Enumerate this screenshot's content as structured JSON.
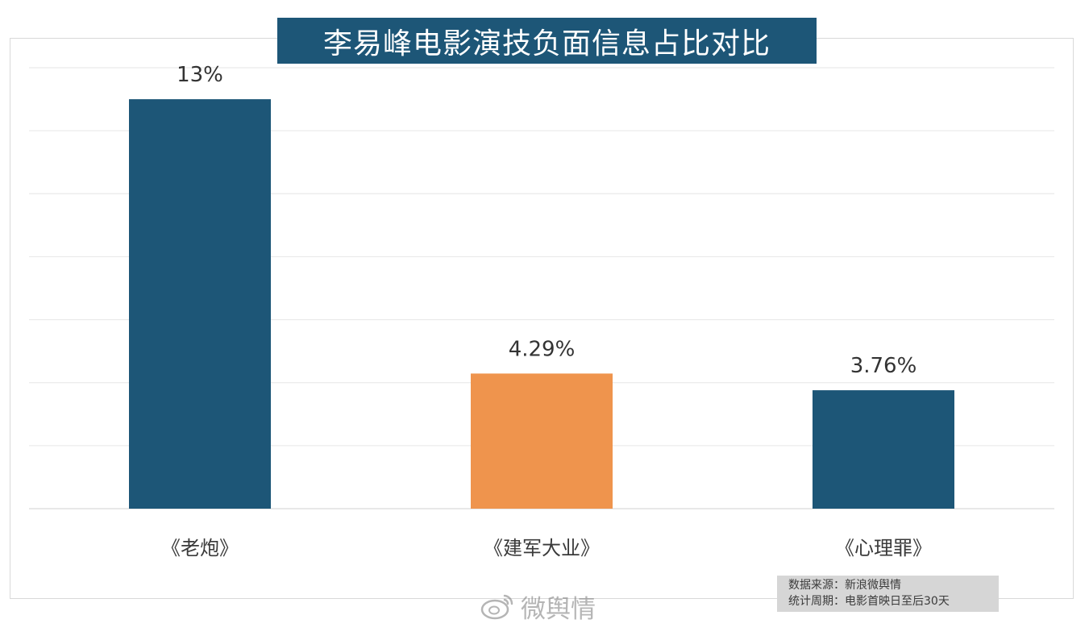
{
  "title": "李易峰电影演技负面信息占比对比",
  "source": {
    "line1": "数据来源：新浪微舆情",
    "line2": "统计周期：电影首映日至后30天"
  },
  "watermark": {
    "text": "微舆情",
    "icon": "weibo-logo-icon"
  },
  "chart_data": {
    "type": "bar",
    "categories": [
      "《老炮》",
      "《建军大业》",
      "《心理罪》"
    ],
    "values": [
      13,
      4.29,
      3.76
    ],
    "value_labels": [
      "13%",
      "4.29%",
      "3.76%"
    ],
    "bar_colors": [
      "#1d5677",
      "#ef944d",
      "#1d5677"
    ],
    "ylim": [
      0,
      14
    ],
    "gridlines": 7,
    "grid": true,
    "legend": "none"
  }
}
